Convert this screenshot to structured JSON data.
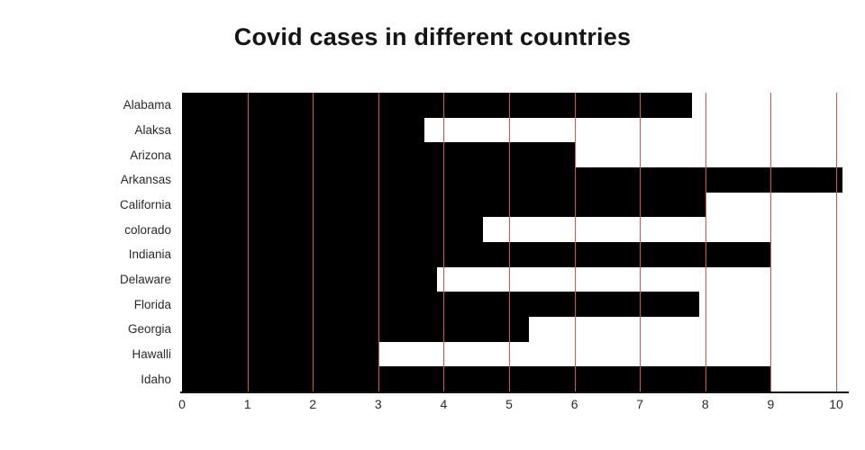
{
  "title": "Covid cases in different countries",
  "colors": {
    "bar": "#000000",
    "grid": "#e0504a",
    "axis": "#111111"
  },
  "chart_data": {
    "type": "bar",
    "orientation": "horizontal",
    "title": "Covid cases in different countries",
    "categories": [
      "Alabama",
      "Alaksa",
      "Arizona",
      "Arkansas",
      "California",
      "colorado",
      "Indiania",
      "Delaware",
      "Florida",
      "Georgia",
      "Hawalli",
      "Idaho"
    ],
    "values": [
      7.8,
      3.7,
      6.0,
      10.1,
      8.0,
      4.6,
      9.0,
      3.9,
      7.9,
      5.3,
      3.0,
      9.0
    ],
    "xlabel": "",
    "ylabel": "",
    "xlim": [
      0,
      10.2
    ],
    "x_ticks": [
      0,
      1,
      2,
      3,
      4,
      5,
      6,
      7,
      8,
      9,
      10
    ],
    "grid": "vertical-red-lines-at-integer-ticks",
    "legend": false,
    "bar_color": "#000000",
    "grid_color": "#e0504a"
  }
}
